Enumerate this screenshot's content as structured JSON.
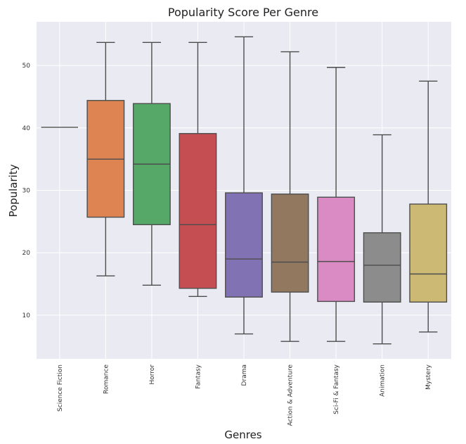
{
  "chart_data": {
    "type": "box",
    "title": "Popularity Score Per Genre",
    "xlabel": "Genres",
    "ylabel": "Popularity",
    "ylim": [
      3,
      57
    ],
    "yticks": [
      10,
      20,
      30,
      40,
      50
    ],
    "grid": true,
    "categories": [
      "Science Fiction",
      "Romance",
      "Horror",
      "Fantasy",
      "Drama",
      "Action & Adventure",
      "Sci-Fi & Fantasy",
      "Animation",
      "Mystery"
    ],
    "boxes": [
      {
        "category": "Science Fiction",
        "min": 40.1,
        "q1": 40.1,
        "median": 40.1,
        "q3": 40.1,
        "max": 40.1,
        "color": "#4c72b0"
      },
      {
        "category": "Romance",
        "min": 16.3,
        "q1": 25.7,
        "median": 35.0,
        "q3": 44.4,
        "max": 53.7,
        "color": "#dd8452"
      },
      {
        "category": "Horror",
        "min": 14.8,
        "q1": 24.5,
        "median": 34.2,
        "q3": 43.9,
        "max": 53.7,
        "color": "#55a868"
      },
      {
        "category": "Fantasy",
        "min": 13.0,
        "q1": 14.3,
        "median": 24.5,
        "q3": 39.1,
        "max": 53.7,
        "color": "#c44e52"
      },
      {
        "category": "Drama",
        "min": 7.0,
        "q1": 12.9,
        "median": 19.0,
        "q3": 29.6,
        "max": 54.6,
        "color": "#8172b3"
      },
      {
        "category": "Action & Adventure",
        "min": 5.8,
        "q1": 13.7,
        "median": 18.5,
        "q3": 29.4,
        "max": 52.2,
        "color": "#937860"
      },
      {
        "category": "Sci-Fi & Fantasy",
        "min": 5.8,
        "q1": 12.2,
        "median": 18.6,
        "q3": 28.9,
        "max": 49.7,
        "color": "#da8bc3"
      },
      {
        "category": "Animation",
        "min": 5.4,
        "q1": 12.1,
        "median": 18.0,
        "q3": 23.2,
        "max": 38.9,
        "color": "#8c8c8c"
      },
      {
        "category": "Mystery",
        "min": 7.3,
        "q1": 12.1,
        "median": 16.6,
        "q3": 27.8,
        "max": 47.5,
        "color": "#ccb974"
      }
    ],
    "colors": {
      "plot_background": "#eaeaf2",
      "grid": "#ffffff",
      "box_edge": "#4d4d4d",
      "whisker": "#4d4d4d"
    }
  }
}
